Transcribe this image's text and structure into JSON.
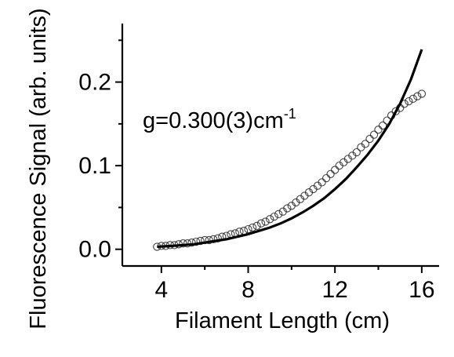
{
  "chart_data": {
    "type": "scatter",
    "xlabel": "Filament Length (cm)",
    "ylabel": "Fluorescence Signal (arb. units)",
    "xlim": [
      2.2,
      16.8
    ],
    "ylim": [
      -0.02,
      0.27
    ],
    "xticks": [
      4,
      8,
      12,
      16
    ],
    "xtick_labels": [
      "4",
      "8",
      "12",
      "16"
    ],
    "yticks": [
      0.0,
      0.1,
      0.2
    ],
    "ytick_labels": [
      "0.0",
      "0.1",
      "0.2"
    ],
    "annotation": {
      "text": "g=0.300(3)cm",
      "superscript": "-1"
    },
    "grid": false,
    "series": [
      {
        "kind": "scatter",
        "marker": "open-circle",
        "x": [
          3.8,
          4.0,
          4.2,
          4.4,
          4.6,
          4.8,
          5.0,
          5.2,
          5.4,
          5.6,
          5.8,
          6.0,
          6.2,
          6.4,
          6.6,
          6.8,
          7.0,
          7.2,
          7.4,
          7.6,
          7.8,
          8.0,
          8.2,
          8.4,
          8.6,
          8.8,
          9.0,
          9.2,
          9.4,
          9.6,
          9.8,
          10.0,
          10.2,
          10.4,
          10.6,
          10.8,
          11.0,
          11.2,
          11.4,
          11.6,
          11.8,
          12.0,
          12.2,
          12.4,
          12.6,
          12.8,
          13.0,
          13.2,
          13.4,
          13.6,
          13.8,
          14.0,
          14.2,
          14.4,
          14.6,
          14.8,
          15.0,
          15.2,
          15.4,
          15.6,
          15.8,
          16.0
        ],
        "y": [
          0.003,
          0.004,
          0.004,
          0.005,
          0.005,
          0.006,
          0.007,
          0.007,
          0.008,
          0.009,
          0.01,
          0.011,
          0.011,
          0.012,
          0.013,
          0.015,
          0.016,
          0.018,
          0.019,
          0.021,
          0.022,
          0.024,
          0.026,
          0.028,
          0.031,
          0.033,
          0.036,
          0.039,
          0.042,
          0.045,
          0.049,
          0.052,
          0.056,
          0.06,
          0.064,
          0.068,
          0.072,
          0.076,
          0.08,
          0.085,
          0.09,
          0.095,
          0.1,
          0.104,
          0.108,
          0.112,
          0.116,
          0.122,
          0.126,
          0.132,
          0.137,
          0.143,
          0.148,
          0.154,
          0.16,
          0.165,
          0.169,
          0.174,
          0.177,
          0.18,
          0.183,
          0.186
        ]
      },
      {
        "kind": "line",
        "x": [
          3.8,
          4.5,
          5.0,
          5.5,
          6.0,
          6.5,
          7.0,
          7.5,
          8.0,
          8.5,
          9.0,
          9.5,
          10.0,
          10.5,
          11.0,
          11.5,
          12.0,
          12.5,
          13.0,
          13.5,
          14.0,
          14.5,
          15.0,
          15.5,
          16.0
        ],
        "y": [
          0.003,
          0.004,
          0.005,
          0.006,
          0.008,
          0.01,
          0.012,
          0.015,
          0.018,
          0.022,
          0.026,
          0.031,
          0.037,
          0.044,
          0.052,
          0.061,
          0.072,
          0.084,
          0.098,
          0.113,
          0.13,
          0.15,
          0.174,
          0.203,
          0.239
        ]
      }
    ]
  }
}
